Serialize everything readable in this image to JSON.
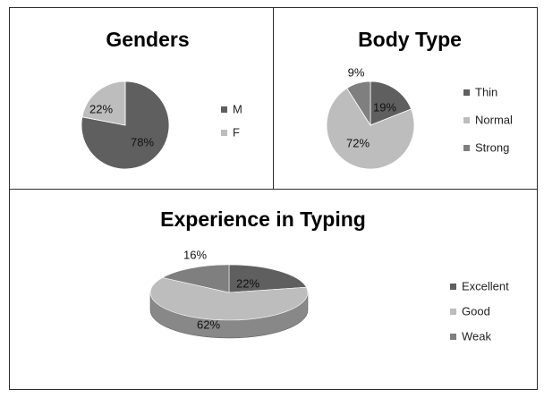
{
  "colors": {
    "dark": "#5f5f5f",
    "light": "#bdbdbd",
    "mid": "#7f7f7f",
    "border": "#2b2b2b"
  },
  "chart_data": [
    {
      "type": "pie",
      "title": "Genders",
      "categories": [
        "M",
        "F"
      ],
      "values": [
        78,
        22
      ],
      "labels": [
        "78%",
        "22%"
      ],
      "colors": [
        "#5f5f5f",
        "#bdbdbd"
      ],
      "legend": "right"
    },
    {
      "type": "pie",
      "title": "Body Type",
      "categories": [
        "Thin",
        "Normal",
        "Strong"
      ],
      "values": [
        19,
        72,
        9
      ],
      "labels": [
        "19%",
        "72%",
        "9%"
      ],
      "colors": [
        "#5f5f5f",
        "#bdbdbd",
        "#7f7f7f"
      ],
      "legend": "right"
    },
    {
      "type": "pie",
      "title": "Experience in Typing",
      "categories": [
        "Excellent",
        "Good",
        "Weak"
      ],
      "values": [
        22,
        62,
        16
      ],
      "labels": [
        "22%",
        "62%",
        "16%"
      ],
      "colors": [
        "#5f5f5f",
        "#bdbdbd",
        "#7f7f7f"
      ],
      "style": "3d",
      "legend": "right"
    }
  ]
}
